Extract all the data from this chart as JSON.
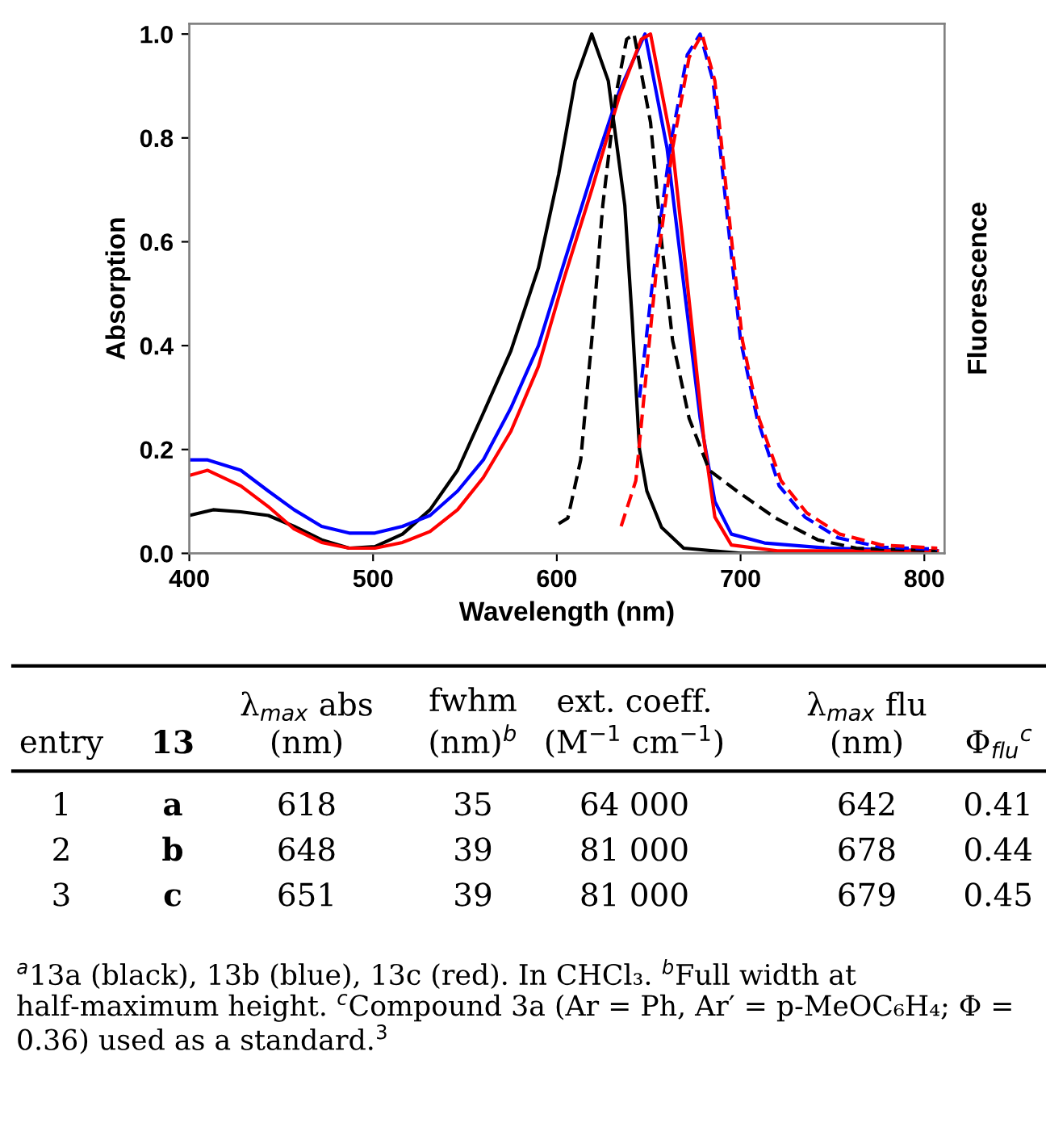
{
  "chart_data": [
    {
      "type": "line",
      "xlabel": "Wavelength (nm)",
      "ylabel": "Absorption",
      "y2label": "Fluorescence",
      "xlim": [
        400,
        811
      ],
      "xticks": [
        400,
        500,
        600,
        700,
        800
      ],
      "ylim": [
        0,
        1.02
      ],
      "yticks": [
        {
          "value": 0,
          "label": "0.0"
        },
        {
          "value": 0.2,
          "label": "0.2"
        },
        {
          "value": 0.4,
          "label": "0.4"
        },
        {
          "value": 0.6,
          "label": "0.6"
        },
        {
          "value": 0.8,
          "label": "0.8"
        },
        {
          "value": 1.0,
          "label": "1.0"
        }
      ],
      "grid": false,
      "legend": false,
      "marker": "none",
      "series": [
        {
          "color": "#000000",
          "line_style": "solid",
          "x": [
            400,
            413,
            428,
            443,
            457,
            472,
            487,
            501,
            516,
            531,
            546,
            560,
            575,
            590,
            601,
            610,
            619,
            628,
            637,
            641,
            645,
            649,
            657,
            669,
            700,
            800
          ],
          "values": [
            0.073,
            0.084,
            0.08,
            0.073,
            0.052,
            0.026,
            0.01,
            0.013,
            0.037,
            0.084,
            0.16,
            0.27,
            0.39,
            0.55,
            0.73,
            0.91,
            1.0,
            0.91,
            0.67,
            0.45,
            0.2,
            0.12,
            0.05,
            0.01,
            0.0,
            0.0
          ]
        },
        {
          "color": "#0000ff",
          "line_style": "solid",
          "x": [
            400,
            410,
            428,
            443,
            457,
            472,
            487,
            501,
            516,
            531,
            546,
            560,
            575,
            590,
            604,
            619,
            634,
            648,
            660,
            669,
            678,
            686,
            695,
            713,
            748,
            807
          ],
          "values": [
            0.18,
            0.18,
            0.16,
            0.12,
            0.084,
            0.052,
            0.039,
            0.039,
            0.052,
            0.073,
            0.12,
            0.18,
            0.28,
            0.4,
            0.56,
            0.73,
            0.89,
            1.0,
            0.78,
            0.52,
            0.26,
            0.1,
            0.037,
            0.02,
            0.01,
            0.005
          ]
        },
        {
          "color": "#ff0000",
          "line_style": "solid",
          "x": [
            400,
            410,
            428,
            443,
            457,
            472,
            487,
            501,
            516,
            531,
            546,
            560,
            575,
            590,
            604,
            619,
            634,
            646,
            651,
            663,
            671,
            680,
            686,
            695,
            720,
            807
          ],
          "values": [
            0.15,
            0.16,
            0.13,
            0.09,
            0.047,
            0.021,
            0.01,
            0.01,
            0.021,
            0.042,
            0.084,
            0.146,
            0.235,
            0.36,
            0.53,
            0.7,
            0.88,
            0.99,
            1.0,
            0.78,
            0.52,
            0.22,
            0.07,
            0.016,
            0.005,
            0.005
          ]
        },
        {
          "color": "#000000",
          "line_style": "dashed",
          "x": [
            601,
            606,
            613,
            619,
            625,
            632,
            638,
            642,
            651,
            657,
            663,
            672,
            683,
            698,
            719,
            742,
            763,
            807
          ],
          "values": [
            0.057,
            0.068,
            0.18,
            0.41,
            0.67,
            0.88,
            0.99,
            1.0,
            0.83,
            0.6,
            0.41,
            0.26,
            0.16,
            0.12,
            0.068,
            0.026,
            0.01,
            0.005
          ]
        },
        {
          "color": "#0000ff",
          "line_style": "dashed",
          "x": [
            645,
            653,
            662,
            671,
            678,
            685,
            693,
            700,
            709,
            721,
            735,
            753,
            776,
            807
          ],
          "values": [
            0.3,
            0.55,
            0.79,
            0.96,
            1.0,
            0.91,
            0.64,
            0.41,
            0.26,
            0.13,
            0.07,
            0.03,
            0.012,
            0.008
          ]
        },
        {
          "color": "#ff0000",
          "line_style": "dashed",
          "x": [
            635,
            643,
            654,
            663,
            672,
            679,
            686,
            694,
            701,
            710,
            722,
            736,
            754,
            777,
            807
          ],
          "values": [
            0.052,
            0.14,
            0.54,
            0.78,
            0.955,
            1.0,
            0.91,
            0.64,
            0.41,
            0.26,
            0.14,
            0.078,
            0.037,
            0.016,
            0.01
          ]
        }
      ]
    },
    {
      "type": "other",
      "annotations": [
        "entry",
        "13",
        "λ$_{max}$ abs\n(nm)",
        "fwhm\n(nm)$^{b}$",
        "ext. coeff.\n(M$^{−1}$ cm$^{−1}$)",
        "λ$_{max}$ flu\n(nm)",
        "Φ$_{flu}$$^{c}$",
        "1",
        "a",
        "618",
        "35",
        "64 000",
        "642",
        "0.41",
        "2",
        "b",
        "648",
        "39",
        "81 000",
        "678",
        "0.44",
        "3",
        "c",
        "651",
        "39",
        "81 000",
        "679",
        "0.45",
        "$^{a}$13a (black), 13b (blue), 13c (red). In CHCl₃. $^{b}$Full width at half-maximum height. $^{c}$Compound 3a (Ar = Ph, Ar′ = p-MeOC₆H₄; Φ = 0.36) used as a standard.$^{3}$"
      ]
    }
  ]
}
